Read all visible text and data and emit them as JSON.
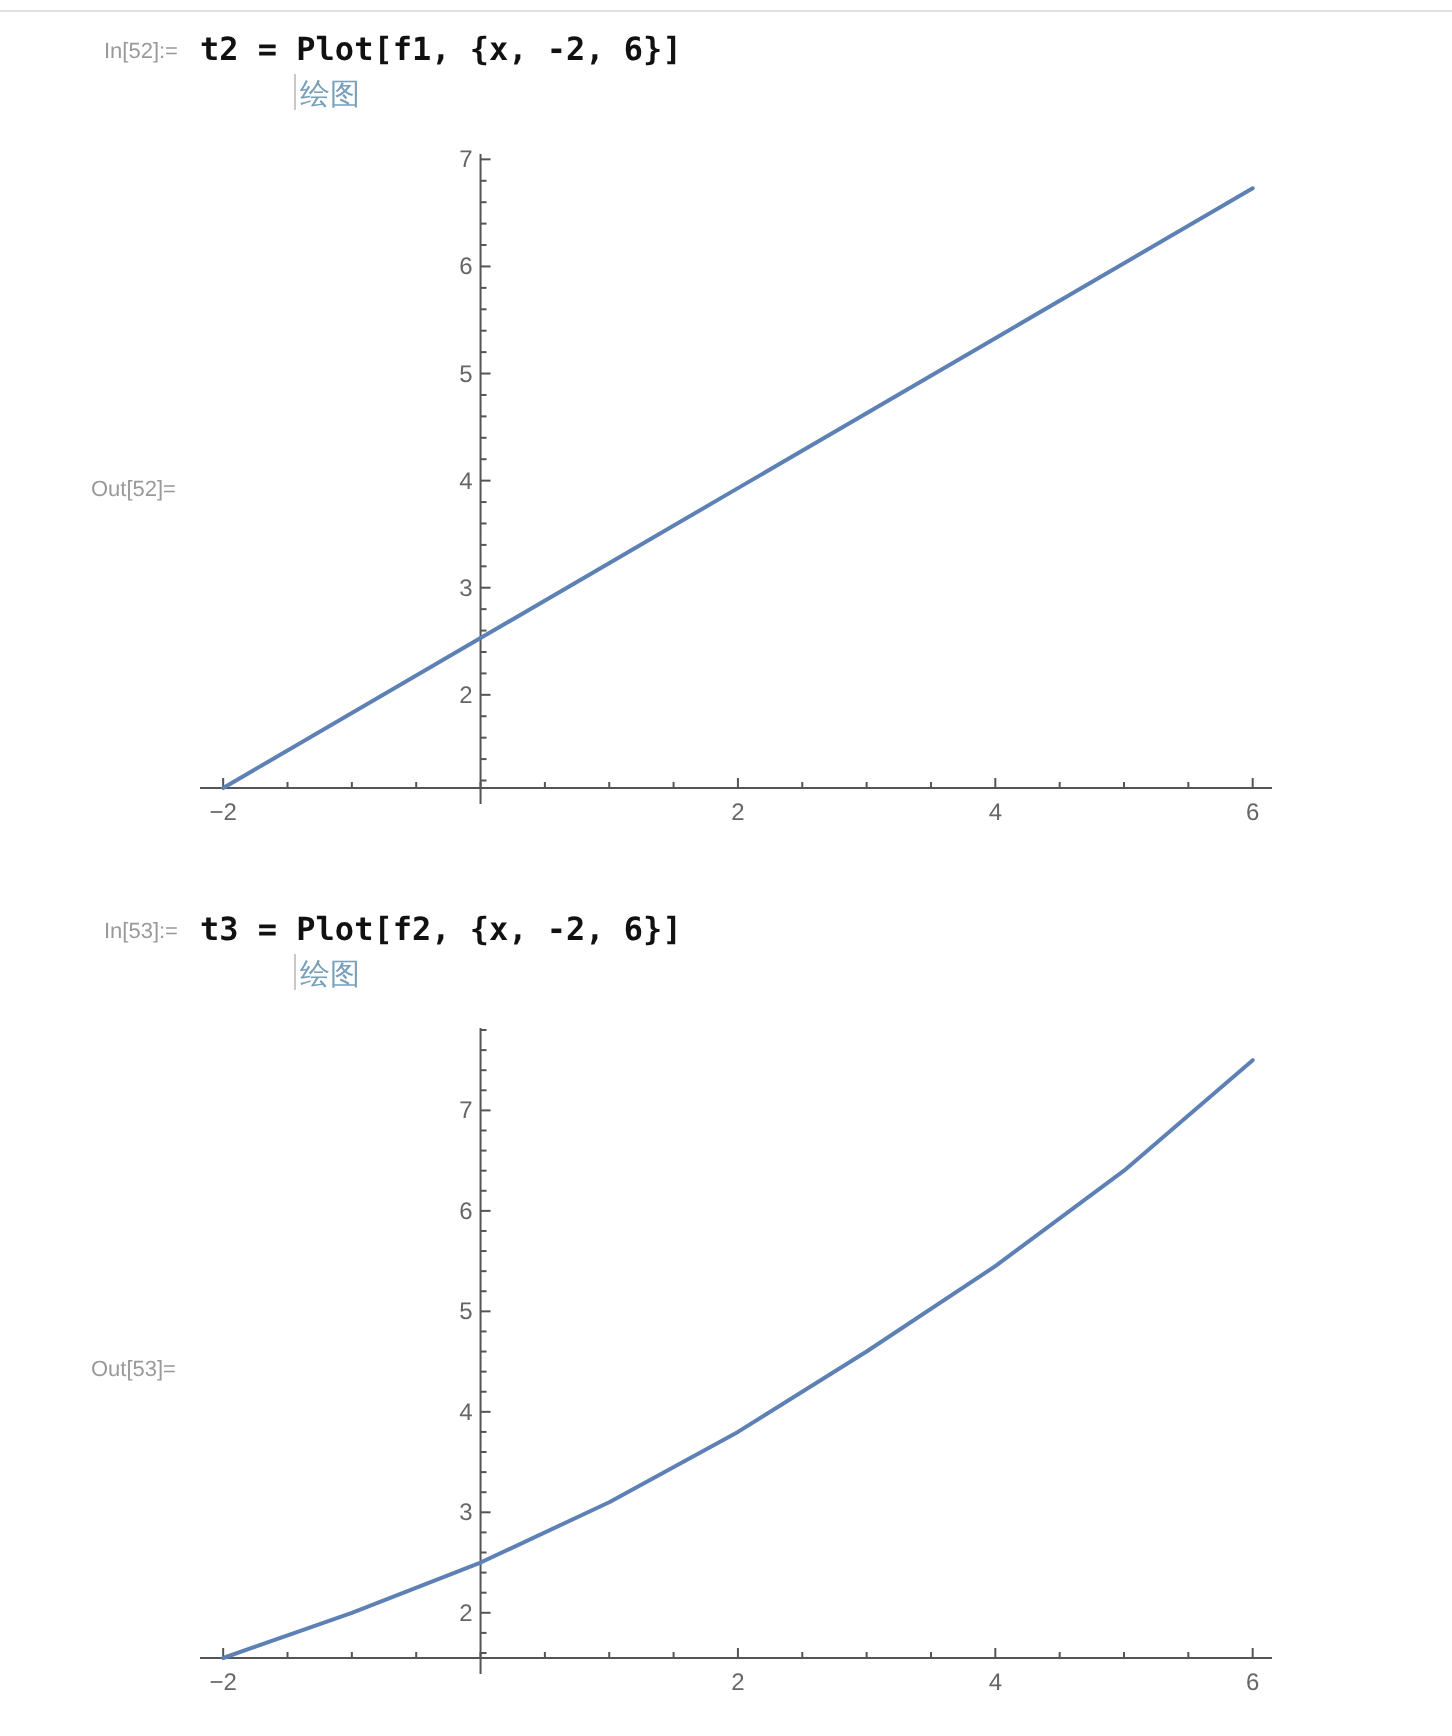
{
  "chart_data": [
    {
      "type": "line",
      "title": "t2 = Plot[f1, {x, -2, 6}]",
      "annotations": [
        "In[52]:=",
        "绘图",
        "Out[52]="
      ],
      "x": [
        -2,
        0,
        2,
        4,
        6
      ],
      "series": [
        {
          "color": "#5e81b5",
          "values": [
            1.13,
            2.53,
            3.93,
            5.33,
            6.73
          ]
        }
      ],
      "xlim": [
        -2.18,
        6.15
      ],
      "ylim": [
        1.13,
        7.05
      ],
      "xticks": [
        {
          "value": -2,
          "label": "−2"
        },
        {
          "value": -1.5,
          "label": null
        },
        {
          "value": -1,
          "label": null
        },
        {
          "value": -0.5,
          "label": null
        },
        {
          "value": 0,
          "label": null
        },
        {
          "value": 0.5,
          "label": null
        },
        {
          "value": 1,
          "label": null
        },
        {
          "value": 1.5,
          "label": null
        },
        2,
        {
          "value": 2.5,
          "label": null
        },
        {
          "value": 3,
          "label": null
        },
        {
          "value": 3.5,
          "label": null
        },
        4,
        {
          "value": 4.5,
          "label": null
        },
        {
          "value": 5,
          "label": null
        },
        {
          "value": 5.5,
          "label": null
        },
        6
      ],
      "yticks": [
        {
          "value": 1.2,
          "label": null
        },
        {
          "value": 1.4,
          "label": null
        },
        {
          "value": 1.6,
          "label": null
        },
        {
          "value": 1.8,
          "label": null
        },
        2,
        {
          "value": 2.2,
          "label": null
        },
        {
          "value": 2.4,
          "label": null
        },
        {
          "value": 2.6,
          "label": null
        },
        {
          "value": 2.8,
          "label": null
        },
        3,
        {
          "value": 3.2,
          "label": null
        },
        {
          "value": 3.4,
          "label": null
        },
        {
          "value": 3.6,
          "label": null
        },
        {
          "value": 3.8,
          "label": null
        },
        4,
        {
          "value": 4.2,
          "label": null
        },
        {
          "value": 4.4,
          "label": null
        },
        {
          "value": 4.6,
          "label": null
        },
        {
          "value": 4.8,
          "label": null
        },
        5,
        {
          "value": 5.2,
          "label": null
        },
        {
          "value": 5.4,
          "label": null
        },
        {
          "value": 5.6,
          "label": null
        },
        {
          "value": 5.8,
          "label": null
        },
        6,
        {
          "value": 6.2,
          "label": null
        },
        {
          "value": 6.4,
          "label": null
        },
        {
          "value": 6.6,
          "label": null
        },
        {
          "value": 6.8,
          "label": null
        },
        7
      ]
    },
    {
      "type": "line",
      "title": "t3 = Plot[f2, {x, -2, 6}]",
      "annotations": [
        "In[53]:=",
        "绘图",
        "Out[53]="
      ],
      "x": [
        -2,
        -1,
        0,
        1,
        2,
        3,
        4,
        5,
        6
      ],
      "series": [
        {
          "color": "#5e81b5",
          "values": [
            1.55,
            2.0,
            2.5,
            3.1,
            3.8,
            4.6,
            5.45,
            6.4,
            7.5
          ]
        }
      ],
      "xlim": [
        -2.18,
        6.15
      ],
      "ylim": [
        1.55,
        7.82
      ],
      "xticks": [
        {
          "value": -2,
          "label": "−2"
        },
        {
          "value": -1.5,
          "label": null
        },
        {
          "value": -1,
          "label": null
        },
        {
          "value": -0.5,
          "label": null
        },
        {
          "value": 0,
          "label": null
        },
        {
          "value": 0.5,
          "label": null
        },
        {
          "value": 1,
          "label": null
        },
        {
          "value": 1.5,
          "label": null
        },
        2,
        {
          "value": 2.5,
          "label": null
        },
        {
          "value": 3,
          "label": null
        },
        {
          "value": 3.5,
          "label": null
        },
        4,
        {
          "value": 4.5,
          "label": null
        },
        {
          "value": 5,
          "label": null
        },
        {
          "value": 5.5,
          "label": null
        },
        6
      ],
      "yticks": [
        {
          "value": 1.6,
          "label": null
        },
        {
          "value": 1.8,
          "label": null
        },
        2,
        {
          "value": 2.2,
          "label": null
        },
        {
          "value": 2.4,
          "label": null
        },
        {
          "value": 2.6,
          "label": null
        },
        {
          "value": 2.8,
          "label": null
        },
        3,
        {
          "value": 3.2,
          "label": null
        },
        {
          "value": 3.4,
          "label": null
        },
        {
          "value": 3.6,
          "label": null
        },
        {
          "value": 3.8,
          "label": null
        },
        4,
        {
          "value": 4.2,
          "label": null
        },
        {
          "value": 4.4,
          "label": null
        },
        {
          "value": 4.6,
          "label": null
        },
        {
          "value": 4.8,
          "label": null
        },
        5,
        {
          "value": 5.2,
          "label": null
        },
        {
          "value": 5.4,
          "label": null
        },
        {
          "value": 5.6,
          "label": null
        },
        {
          "value": 5.8,
          "label": null
        },
        6,
        {
          "value": 6.2,
          "label": null
        },
        {
          "value": 6.4,
          "label": null
        },
        {
          "value": 6.6,
          "label": null
        },
        {
          "value": 6.8,
          "label": null
        },
        7,
        {
          "value": 7.2,
          "label": null
        },
        {
          "value": 7.4,
          "label": null
        },
        {
          "value": 7.6,
          "label": null
        },
        {
          "value": 7.8,
          "label": null
        }
      ]
    }
  ]
}
